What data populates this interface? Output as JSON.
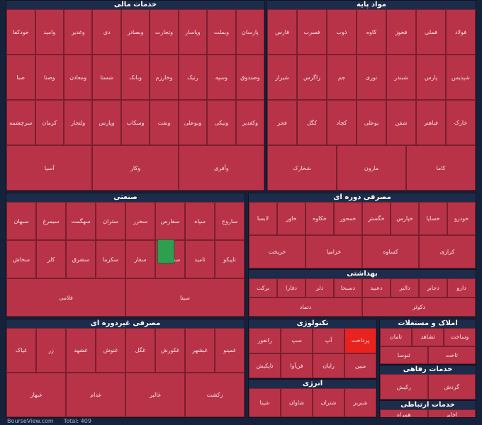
{
  "header": {
    "site": "BourseView.com",
    "total": "Total: 409"
  },
  "sectors": [
    {
      "title": "خدمات مالی",
      "tiles": [
        {
          "label": "پارسان"
        },
        {
          "label": "وبملت"
        },
        {
          "label": "وپاسار"
        },
        {
          "label": "وتجارت"
        },
        {
          "label": "وبصادر"
        },
        {
          "label": "دی"
        },
        {
          "label": "وغدیر"
        },
        {
          "label": "وامید"
        },
        {
          "label": "خودکفا"
        },
        {
          "label": "وصندوق"
        },
        {
          "label": "وسپه"
        },
        {
          "label": "رنیک"
        },
        {
          "label": "وخارزم"
        },
        {
          "label": "وبانک"
        },
        {
          "label": "شستا"
        },
        {
          "label": "ومعادن"
        },
        {
          "label": "وصنا"
        },
        {
          "label": "صبا"
        },
        {
          "label": "وکغدیر"
        },
        {
          "label": "ونیکی"
        },
        {
          "label": "وبوعلی"
        },
        {
          "label": "ونفت"
        },
        {
          "label": "وسکاب"
        },
        {
          "label": "وپارس"
        },
        {
          "label": "ولتجار"
        },
        {
          "label": "کرمان"
        },
        {
          "label": "سرچشمه"
        },
        {
          "label": "وآفری"
        },
        {
          "label": "وکار"
        },
        {
          "label": "آسیا"
        }
      ]
    },
    {
      "title": "مواد پایه",
      "tiles": [
        {
          "label": "فولاد"
        },
        {
          "label": "فملی"
        },
        {
          "label": "فخوز"
        },
        {
          "label": "کاوه"
        },
        {
          "label": "ذوب"
        },
        {
          "label": "فسرب"
        },
        {
          "label": "فارس"
        },
        {
          "label": "شپدیس"
        },
        {
          "label": "پارس"
        },
        {
          "label": "شبندر"
        },
        {
          "label": "نوری"
        },
        {
          "label": "جم"
        },
        {
          "label": "زاگرس"
        },
        {
          "label": "شیراز"
        },
        {
          "label": "خارک"
        },
        {
          "label": "فباهنر"
        },
        {
          "label": "شفن"
        },
        {
          "label": "بوعلی"
        },
        {
          "label": "کچاد"
        },
        {
          "label": "کگل"
        },
        {
          "label": "فجر"
        },
        {
          "label": "کاما"
        },
        {
          "label": "مارون"
        },
        {
          "label": "شخارک"
        }
      ]
    },
    {
      "title": "صنعتی",
      "tiles": [
        {
          "label": "ساروج"
        },
        {
          "label": "سپاه"
        },
        {
          "label": "سفارس"
        },
        {
          "label": "سخزر"
        },
        {
          "label": "ستران"
        },
        {
          "label": "سهگمت"
        },
        {
          "label": "سیمرغ"
        },
        {
          "label": "سبهان"
        },
        {
          "label": "تاپیکو"
        },
        {
          "label": "ثامید"
        },
        {
          "label": "سصوفی"
        },
        {
          "label": "سفار"
        },
        {
          "label": "سکرما"
        },
        {
          "label": "سشرق"
        },
        {
          "label": "کلر"
        },
        {
          "label": "سخاش"
        },
        {
          "label": "سیتا"
        },
        {
          "label": "فلامی"
        }
      ]
    },
    {
      "title": "مصرفی دوره ای",
      "tiles": [
        {
          "label": "خودرو"
        },
        {
          "label": "خساپا"
        },
        {
          "label": "خپارس"
        },
        {
          "label": "خگستر"
        },
        {
          "label": "خمحور"
        },
        {
          "label": "خکاوه"
        },
        {
          "label": "خاور"
        },
        {
          "label": "لابسا"
        },
        {
          "label": "کرازی"
        },
        {
          "label": "کساوه"
        },
        {
          "label": "خزامیا"
        },
        {
          "label": "خریخت"
        }
      ]
    },
    {
      "title": "بهداشتی",
      "tiles": [
        {
          "label": "دارو"
        },
        {
          "label": "دجابر"
        },
        {
          "label": "دالبر"
        },
        {
          "label": "دعبید"
        },
        {
          "label": "دسبحا"
        },
        {
          "label": "دلر"
        },
        {
          "label": "دفارا"
        },
        {
          "label": "برکت"
        },
        {
          "label": "دکوثر"
        },
        {
          "label": "دتماد"
        }
      ]
    },
    {
      "title": "مصرفی غیردوره ای",
      "tiles": [
        {
          "label": "غمینو"
        },
        {
          "label": "غبشهر"
        },
        {
          "label": "غکورش"
        },
        {
          "label": "غگل"
        },
        {
          "label": "غنوش"
        },
        {
          "label": "غشهد"
        },
        {
          "label": "زر"
        },
        {
          "label": "غپاک"
        },
        {
          "label": "زکشت"
        },
        {
          "label": "غالبر"
        },
        {
          "label": "غدام"
        },
        {
          "label": "غبهار"
        }
      ]
    },
    {
      "title": "تکنولوژی",
      "tiles": [
        {
          "label": "پرداخت",
          "color": "#e8231f"
        },
        {
          "label": "آپ"
        },
        {
          "label": "سپ"
        },
        {
          "label": "رانفور"
        },
        {
          "label": "مبین"
        },
        {
          "label": "رایان"
        },
        {
          "label": "فن‌آوا"
        },
        {
          "label": "تاپکیش"
        }
      ]
    },
    {
      "title": "انرژی",
      "tiles": [
        {
          "label": "شبریز"
        },
        {
          "label": "شتران"
        },
        {
          "label": "شاوان"
        },
        {
          "label": "شپنا"
        }
      ]
    },
    {
      "title": "املاک و مستغلات",
      "tiles": [
        {
          "label": "وساخت"
        },
        {
          "label": "ثشاهد"
        },
        {
          "label": "ثامان"
        },
        {
          "label": "ثاخت"
        },
        {
          "label": "ثنوسا"
        }
      ]
    },
    {
      "title": "خدمات رفاهی",
      "tiles": [
        {
          "label": "گردش"
        },
        {
          "label": "رکیش"
        }
      ]
    },
    {
      "title": "خدمات ارتباطی",
      "tiles": [
        {
          "label": "اخابر"
        },
        {
          "label": "همراه"
        }
      ]
    }
  ]
}
